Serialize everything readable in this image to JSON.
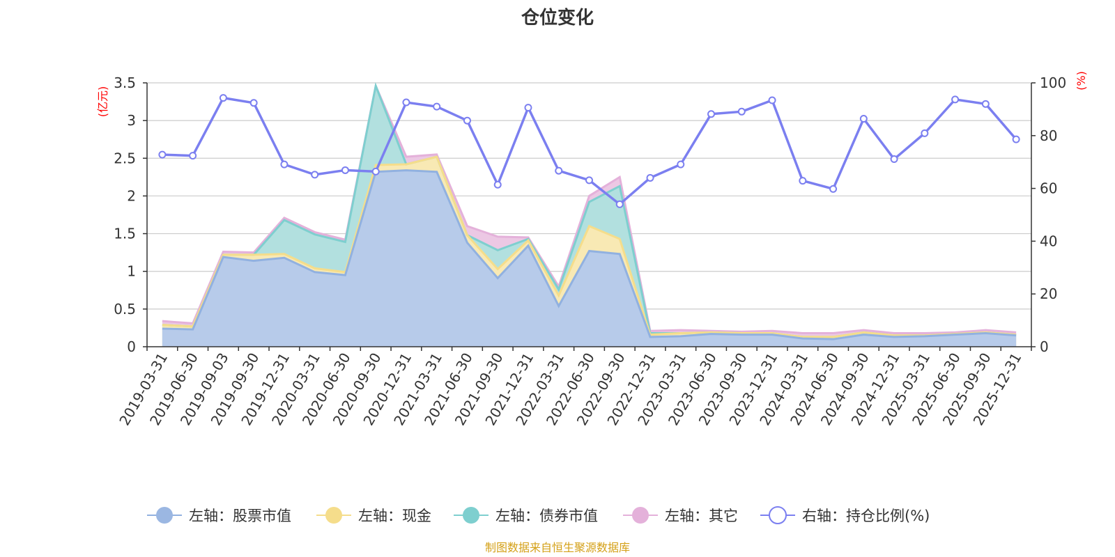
{
  "chart_data": {
    "type": "area",
    "title": "仓位变化",
    "source": "制图数据来自恒生聚源数据库",
    "left_axis": {
      "unit": "(亿元)",
      "range": [
        0,
        3.5
      ],
      "ticks": [
        "0",
        "0.5",
        "1",
        "1.5",
        "2",
        "2.5",
        "3",
        "3.5"
      ]
    },
    "right_axis": {
      "unit": "(%)",
      "range": [
        0,
        100
      ],
      "ticks": [
        "0",
        "20",
        "40",
        "60",
        "80",
        "100"
      ]
    },
    "grid": true,
    "legend_position": "bottom",
    "x": [
      "2019-03-31",
      "2019-06-30",
      "2019-09-03",
      "2019-09-30",
      "2019-12-31",
      "2020-03-31",
      "2020-06-30",
      "2020-09-30",
      "2020-12-31",
      "2021-03-31",
      "2021-06-30",
      "2021-09-30",
      "2021-12-31",
      "2022-03-31",
      "2022-06-30",
      "2022-09-30",
      "2022-12-31",
      "2023-03-31",
      "2023-06-30",
      "2023-09-30",
      "2023-12-31",
      "2024-03-31",
      "2024-06-30",
      "2024-09-30",
      "2024-12-31",
      "2025-03-31",
      "2025-06-30",
      "2025-09-30",
      "2025-12-31"
    ],
    "series": [
      {
        "name": "左轴：股票市值",
        "axis": "left",
        "kind": "stacked-area",
        "color": "#91b1e0",
        "fill": "#b7cbea",
        "values": [
          0.24,
          0.23,
          1.19,
          1.14,
          1.18,
          0.99,
          0.95,
          2.32,
          2.34,
          2.32,
          1.38,
          0.91,
          1.34,
          0.54,
          1.27,
          1.23,
          0.13,
          0.14,
          0.17,
          0.16,
          0.16,
          0.11,
          0.1,
          0.16,
          0.13,
          0.14,
          0.16,
          0.18,
          0.15
        ]
      },
      {
        "name": "左轴：现金",
        "axis": "left",
        "kind": "stacked-area",
        "color": "#f5dd8b",
        "fill": "#f8e9b4",
        "values": [
          0.05,
          0.04,
          0.03,
          0.08,
          0.05,
          0.05,
          0.04,
          0.09,
          0.08,
          0.2,
          0.1,
          0.12,
          0.07,
          0.14,
          0.33,
          0.2,
          0.03,
          0.04,
          0.02,
          0.02,
          0.02,
          0.02,
          0.03,
          0.03,
          0.02,
          0.01,
          0.01,
          0.01,
          0.01
        ]
      },
      {
        "name": "左轴：债券市值",
        "axis": "left",
        "kind": "stacked-area",
        "color": "#7ecfcf",
        "fill": "#b2e0df",
        "values": [
          0.0,
          0.0,
          0.0,
          0.0,
          0.45,
          0.45,
          0.4,
          1.05,
          0.0,
          0.0,
          0.0,
          0.25,
          0.02,
          0.08,
          0.32,
          0.7,
          0.02,
          0.0,
          0.0,
          0.0,
          0.0,
          0.0,
          0.0,
          0.0,
          0.0,
          0.0,
          0.0,
          0.0,
          0.0
        ]
      },
      {
        "name": "左轴：其它",
        "axis": "left",
        "kind": "stacked-area",
        "color": "#e4b1da",
        "fill": "#ecc8e4",
        "values": [
          0.05,
          0.04,
          0.04,
          0.03,
          0.03,
          0.03,
          0.03,
          0.0,
          0.1,
          0.03,
          0.12,
          0.18,
          0.02,
          0.04,
          0.08,
          0.12,
          0.03,
          0.04,
          0.02,
          0.02,
          0.03,
          0.05,
          0.05,
          0.03,
          0.03,
          0.03,
          0.02,
          0.03,
          0.03
        ]
      },
      {
        "name": "右轴：持仓比例(%)",
        "axis": "right",
        "kind": "line",
        "color": "#7b7ff0",
        "values": [
          72.8,
          72.4,
          94.3,
          92.4,
          69.1,
          65.2,
          66.9,
          66.4,
          92.6,
          91.0,
          85.7,
          61.4,
          90.6,
          66.7,
          63.1,
          54.0,
          64.0,
          69.1,
          88.2,
          89.1,
          93.4,
          62.9,
          59.8,
          86.4,
          71.1,
          80.9,
          93.7,
          92.0,
          78.6
        ]
      }
    ]
  }
}
